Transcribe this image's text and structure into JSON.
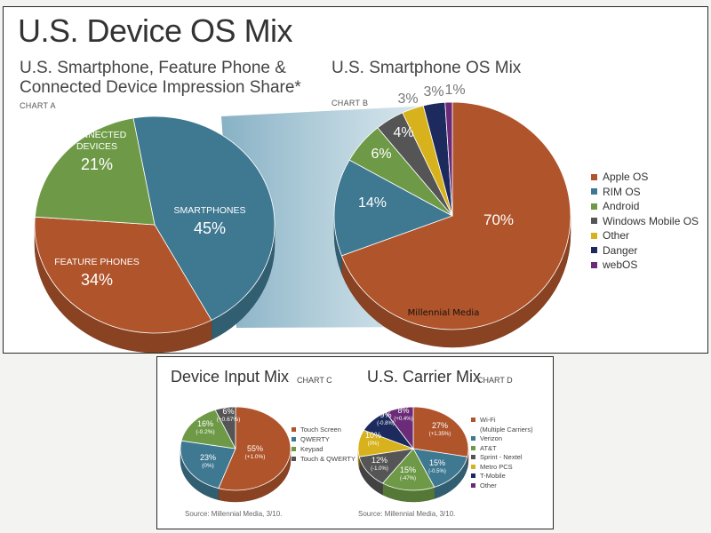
{
  "page": {
    "title": "U.S. Device OS Mix",
    "watermark": "Millennial Media"
  },
  "chart_data": [
    {
      "id": "chart-a",
      "type": "pie",
      "tag": "CHART A",
      "title_lines": [
        "U.S. Smartphone, Feature Phone &",
        "Connected Device Impression Share*"
      ],
      "slices": [
        {
          "name": "SMARTPHONES",
          "name_lines": [
            "SMARTPHONES"
          ],
          "value": 45,
          "label": "45%",
          "color": "#3f7891"
        },
        {
          "name": "FEATURE PHONES",
          "name_lines": [
            "FEATURE PHONES"
          ],
          "value": 34,
          "label": "34%",
          "color": "#b0542b"
        },
        {
          "name": "CONNECTED DEVICES",
          "name_lines": [
            "CONNECTED",
            "DEVICES"
          ],
          "value": 21,
          "label": "21%",
          "color": "#6e9a47"
        }
      ]
    },
    {
      "id": "chart-b",
      "type": "pie",
      "tag": "CHART B",
      "title": "U.S. Smartphone OS Mix",
      "slices": [
        {
          "name": "Apple OS",
          "value": 70,
          "label": "70%",
          "color": "#b0542b"
        },
        {
          "name": "RIM OS",
          "value": 14,
          "label": "14%",
          "color": "#3f7891"
        },
        {
          "name": "Android",
          "value": 6,
          "label": "6%",
          "color": "#6e9a47"
        },
        {
          "name": "Windows Mobile OS",
          "value": 4,
          "label": "4%",
          "color": "#555555"
        },
        {
          "name": "Other",
          "value": 3,
          "label": "3%",
          "color": "#d7b21c"
        },
        {
          "name": "Danger",
          "value": 3,
          "label": "3%",
          "color": "#1c2a5e"
        },
        {
          "name": "webOS",
          "value": 1,
          "label": "1%",
          "color": "#6b2b78"
        }
      ],
      "legend": [
        "Apple OS",
        "RIM OS",
        "Android",
        "Windows Mobile OS",
        "Other",
        "Danger",
        "webOS"
      ]
    },
    {
      "id": "chart-c",
      "type": "pie",
      "tag": "CHART C",
      "title": "Device Input Mix",
      "source": "Source: Millennial Media, 3/10.",
      "slices": [
        {
          "name": "Touch Screen",
          "value": 55,
          "label": "55%",
          "change": "(+1.0%)",
          "color": "#b0542b"
        },
        {
          "name": "QWERTY",
          "value": 23,
          "label": "23%",
          "change": "(0%)",
          "color": "#3f7891"
        },
        {
          "name": "Keypad",
          "value": 16,
          "label": "16%",
          "change": "(-0.2%)",
          "color": "#6e9a47"
        },
        {
          "name": "Touch & QWERTY",
          "value": 6,
          "label": "6%",
          "change": "(+0.67%)",
          "color": "#555555"
        }
      ]
    },
    {
      "id": "chart-d",
      "type": "pie",
      "tag": "CHART D",
      "title": "U.S. Carrier Mix",
      "source": "Source: Millennial Media, 3/10.",
      "slices": [
        {
          "name": "Wi-Fi (Multiple Carriers)",
          "legend_lines": [
            "Wi-Fi",
            "(Multiple Carriers)"
          ],
          "value": 27,
          "label": "27%",
          "change": "(+1.35%)",
          "color": "#b0542b"
        },
        {
          "name": "Verizon",
          "value": 15,
          "label": "15%",
          "change": "(-0.5%)",
          "color": "#3f7891"
        },
        {
          "name": "AT&T",
          "value": 15,
          "label": "15%",
          "change": "(-47%)",
          "color": "#6e9a47"
        },
        {
          "name": "Sprint - Nextel",
          "value": 12,
          "label": "12%",
          "change": "(-1.0%)",
          "color": "#555555"
        },
        {
          "name": "Metro PCS",
          "value": 10,
          "label": "10%",
          "change": "(0%)",
          "color": "#d7b21c"
        },
        {
          "name": "T-Mobile",
          "value": 9,
          "label": "9%",
          "change": "(-0.8%)",
          "color": "#1c2a5e"
        },
        {
          "name": "Other",
          "value": 8,
          "label": "8%",
          "change": "(+0.4%)",
          "color": "#6b2b78"
        }
      ]
    }
  ]
}
